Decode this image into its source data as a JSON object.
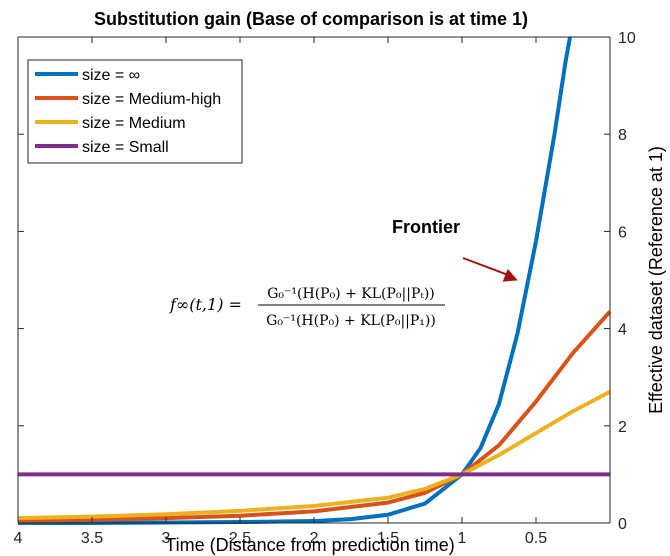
{
  "chart_data": {
    "type": "line",
    "title": "Substitution gain (Base of comparison is at time 1)",
    "xlabel": "Time (Distance from prediction time)",
    "ylabel": "Effective dataset (Reference at 1)",
    "x_reversed": true,
    "xlim": [
      0,
      4
    ],
    "ylim": [
      0,
      10
    ],
    "y_axis_side": "right",
    "x_ticks": [
      4,
      3.5,
      3,
      2.5,
      2,
      1.5,
      1,
      0.5
    ],
    "x_tick_labels": [
      "4",
      "3.5",
      "3",
      "2.5",
      "2",
      "1.5",
      "1",
      "0.5"
    ],
    "y_ticks": [
      0,
      2,
      4,
      6,
      8,
      10
    ],
    "y_tick_labels": [
      "0",
      "2",
      "4",
      "6",
      "8",
      "10"
    ],
    "grid": false,
    "legend_position": "top-left",
    "series": [
      {
        "name": "size = ∞",
        "color": "#0072BD",
        "points": [
          [
            4,
            0
          ],
          [
            3.5,
            0
          ],
          [
            3,
            0.01
          ],
          [
            2.5,
            0.02
          ],
          [
            2,
            0.04
          ],
          [
            1.75,
            0.08
          ],
          [
            1.5,
            0.17
          ],
          [
            1.25,
            0.4
          ],
          [
            1,
            1
          ],
          [
            0.875,
            1.54
          ],
          [
            0.75,
            2.45
          ],
          [
            0.625,
            3.9
          ],
          [
            0.5,
            5.8
          ],
          [
            0.375,
            8.0
          ],
          [
            0.3,
            9.5
          ],
          [
            0.27,
            10
          ]
        ]
      },
      {
        "name": "size = Medium-high",
        "color": "#D95319",
        "points": [
          [
            4,
            0.05
          ],
          [
            3.5,
            0.07
          ],
          [
            3,
            0.1
          ],
          [
            2.5,
            0.15
          ],
          [
            2,
            0.24
          ],
          [
            1.5,
            0.42
          ],
          [
            1.25,
            0.62
          ],
          [
            1,
            1
          ],
          [
            0.75,
            1.6
          ],
          [
            0.5,
            2.5
          ],
          [
            0.25,
            3.5
          ],
          [
            0,
            4.35
          ]
        ]
      },
      {
        "name": "size = Medium",
        "color": "#EDB120",
        "points": [
          [
            4,
            0.1
          ],
          [
            3.5,
            0.13
          ],
          [
            3,
            0.18
          ],
          [
            2.5,
            0.25
          ],
          [
            2,
            0.35
          ],
          [
            1.5,
            0.52
          ],
          [
            1.25,
            0.7
          ],
          [
            1,
            1
          ],
          [
            0.75,
            1.4
          ],
          [
            0.5,
            1.85
          ],
          [
            0.25,
            2.3
          ],
          [
            0,
            2.7
          ]
        ]
      },
      {
        "name": "size = Small",
        "color": "#7E2F8E",
        "points": [
          [
            4,
            1
          ],
          [
            0,
            1
          ]
        ]
      }
    ],
    "annotations": {
      "frontier_label": "Frontier",
      "frontier_arrow_tip": [
        0.63,
        5
      ],
      "frontier_arrow_color": "#A0140F"
    },
    "formula": {
      "lhs": "f∞(t,1) =",
      "numerator": "G₀⁻¹(H(P₀) + KL(P₀||Pₜ))",
      "denominator": "G₀⁻¹(H(P₀) + KL(P₀||P₁))"
    }
  }
}
